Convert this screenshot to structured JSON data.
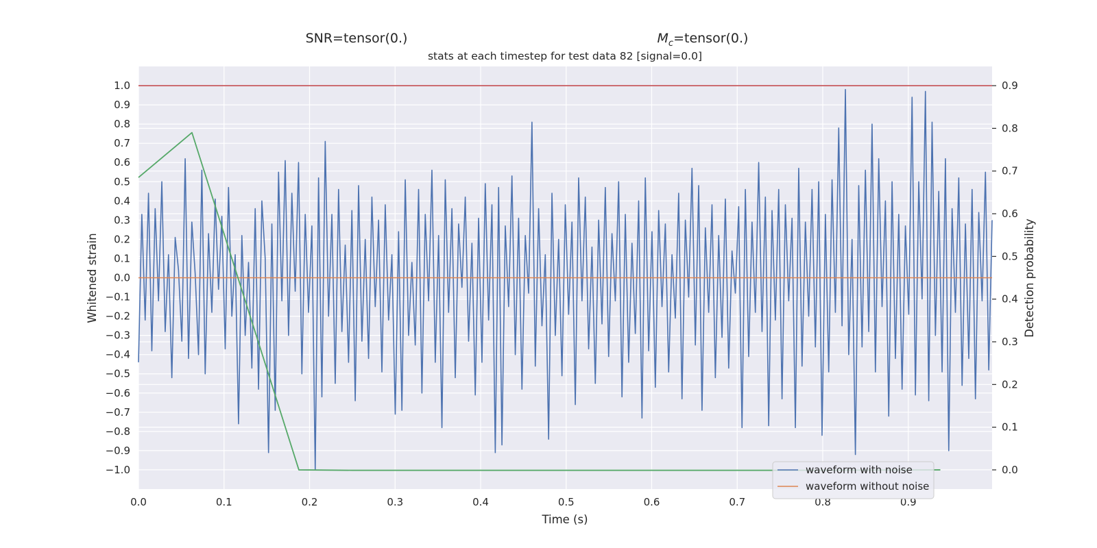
{
  "header": {
    "snr_label": "SNR=tensor(0.)",
    "mc_symbol": "M",
    "mc_subscript": "c",
    "mc_value": "=tensor(0.)",
    "subtitle": "stats at each timestep for test data 82 [signal=0.0]"
  },
  "colors": {
    "plot_bg": "#eaeaf2",
    "grid": "#ffffff",
    "noisy": "#4c72b0",
    "clean": "#dd8452",
    "prob": "#55a868",
    "threshold": "#c44e52",
    "text": "#262626"
  },
  "chart_data": {
    "type": "line",
    "title": "stats at each timestep for test data 82 [signal=0.0]",
    "xlabel": "Time (s)",
    "ylabel": "Whitened strain",
    "y2label": "Detection probability",
    "xlim": [
      0.0,
      0.998
    ],
    "ylim": [
      -1.1,
      1.1
    ],
    "y2lim": [
      -0.045,
      0.945
    ],
    "xticks": [
      0.0,
      0.1,
      0.2,
      0.3,
      0.4,
      0.5,
      0.6,
      0.7,
      0.8,
      0.9
    ],
    "xtick_labels": [
      "0.0",
      "0.1",
      "0.2",
      "0.3",
      "0.4",
      "0.5",
      "0.6",
      "0.7",
      "0.8",
      "0.9"
    ],
    "yticks": [
      1.0,
      0.9,
      0.8,
      0.7,
      0.6,
      0.5,
      0.4,
      0.3,
      0.2,
      0.1,
      0.0,
      -0.1,
      -0.2,
      -0.3,
      -0.4,
      -0.5,
      -0.6,
      -0.7,
      -0.8,
      -0.9,
      -1.0
    ],
    "ytick_labels": [
      "1.0",
      "0.9",
      "0.8",
      "0.7",
      "0.6",
      "0.5",
      "0.4",
      "0.3",
      "0.2",
      "0.1",
      "0.0",
      "−0.1",
      "−0.2",
      "−0.3",
      "−0.4",
      "−0.5",
      "−0.6",
      "−0.7",
      "−0.8",
      "−0.9",
      "−1.0"
    ],
    "y2ticks": [
      0.9,
      0.8,
      0.7,
      0.6,
      0.5,
      0.4,
      0.3,
      0.2,
      0.1,
      0.0
    ],
    "y2tick_labels": [
      "0.9",
      "0.8",
      "0.7",
      "0.6",
      "0.5",
      "0.4",
      "0.3",
      "0.2",
      "0.1",
      "0.0"
    ],
    "grid": true,
    "legend_position": "bottom-right",
    "series": [
      {
        "name": "waveform with noise",
        "axis": "left",
        "x_start": 0.0,
        "x_end": 0.998,
        "values": [
          -0.44,
          0.33,
          -0.22,
          0.44,
          -0.38,
          0.36,
          -0.12,
          0.5,
          -0.28,
          0.12,
          -0.52,
          0.21,
          0.04,
          -0.33,
          0.62,
          -0.42,
          0.29,
          0.02,
          -0.4,
          0.56,
          -0.5,
          0.23,
          -0.18,
          0.41,
          -0.06,
          0.32,
          -0.37,
          0.47,
          -0.2,
          0.12,
          -0.76,
          0.22,
          -0.3,
          0.08,
          -0.47,
          0.36,
          -0.58,
          0.4,
          0.1,
          -0.91,
          0.28,
          -0.69,
          0.55,
          -0.12,
          0.61,
          -0.3,
          0.44,
          -0.07,
          0.6,
          -0.5,
          0.33,
          -0.18,
          0.27,
          -1.0,
          0.52,
          -0.62,
          0.71,
          -0.2,
          0.33,
          -0.55,
          0.46,
          -0.28,
          0.17,
          -0.44,
          0.35,
          -0.64,
          0.48,
          -0.33,
          0.2,
          -0.42,
          0.42,
          -0.15,
          0.3,
          -0.49,
          0.38,
          -0.22,
          0.12,
          -0.71,
          0.24,
          -0.69,
          0.51,
          -0.3,
          0.08,
          -0.35,
          0.46,
          -0.6,
          0.33,
          -0.12,
          0.56,
          -0.44,
          0.22,
          -0.78,
          0.51,
          -0.18,
          0.36,
          -0.52,
          0.28,
          -0.05,
          0.42,
          -0.33,
          0.18,
          -0.61,
          0.31,
          -0.44,
          0.49,
          -0.22,
          0.38,
          -0.91,
          0.47,
          -0.87,
          0.27,
          -0.15,
          0.53,
          -0.4,
          0.31,
          -0.58,
          0.22,
          -0.08,
          0.81,
          -0.46,
          0.36,
          -0.25,
          0.12,
          -0.84,
          0.44,
          -0.3,
          0.2,
          -0.51,
          0.38,
          -0.19,
          0.29,
          -0.66,
          0.52,
          -0.12,
          0.42,
          -0.37,
          0.16,
          -0.55,
          0.3,
          -0.24,
          0.47,
          -0.41,
          0.23,
          -0.12,
          0.5,
          -0.62,
          0.33,
          -0.44,
          0.18,
          -0.29,
          0.4,
          -0.73,
          0.52,
          -0.38,
          0.24,
          -0.57,
          0.35,
          -0.15,
          0.28,
          -0.49,
          0.12,
          -0.21,
          0.44,
          -0.63,
          0.3,
          -0.1,
          0.57,
          -0.35,
          0.48,
          -0.69,
          0.26,
          -0.18,
          0.38,
          -0.52,
          0.22,
          -0.31,
          0.41,
          -0.47,
          0.14,
          -0.08,
          0.37,
          -0.78,
          0.46,
          -0.41,
          0.29,
          -0.18,
          0.6,
          -0.28,
          0.42,
          -0.77,
          0.35,
          -0.22,
          0.46,
          -0.63,
          0.38,
          -0.12,
          0.31,
          -0.78,
          0.57,
          -0.46,
          0.29,
          -0.2,
          0.46,
          -0.36,
          0.5,
          -0.82,
          0.33,
          -0.49,
          0.51,
          -0.18,
          0.78,
          -0.25,
          0.98,
          -0.4,
          0.2,
          -0.92,
          0.48,
          -0.36,
          0.56,
          -0.28,
          0.8,
          -0.49,
          0.62,
          -0.15,
          0.4,
          -0.72,
          0.5,
          -0.42,
          0.33,
          -0.58,
          0.27,
          -0.19,
          0.94,
          -0.61,
          0.5,
          -0.11,
          0.97,
          -0.64,
          0.81,
          -0.3,
          0.45,
          -0.49,
          0.62,
          -0.9,
          0.36,
          -0.18,
          0.52,
          -0.56,
          0.28,
          -0.42,
          0.46,
          -0.63,
          0.34,
          -0.12,
          0.55,
          -0.48,
          0.3
        ]
      },
      {
        "name": "waveform without noise",
        "axis": "left",
        "x": [
          0.0,
          0.998
        ],
        "y": [
          0.0,
          0.0
        ]
      },
      {
        "name": "",
        "axis": "right",
        "x": [
          0.0,
          0.0625,
          0.1875,
          0.25,
          0.5,
          0.75,
          0.9375
        ],
        "y": [
          0.685,
          0.79,
          0.0,
          -0.001,
          -0.001,
          -0.001,
          0.0
        ]
      },
      {
        "name": "",
        "axis": "right",
        "x": [
          0.0,
          0.998
        ],
        "y": [
          0.9,
          0.9
        ]
      }
    ]
  }
}
